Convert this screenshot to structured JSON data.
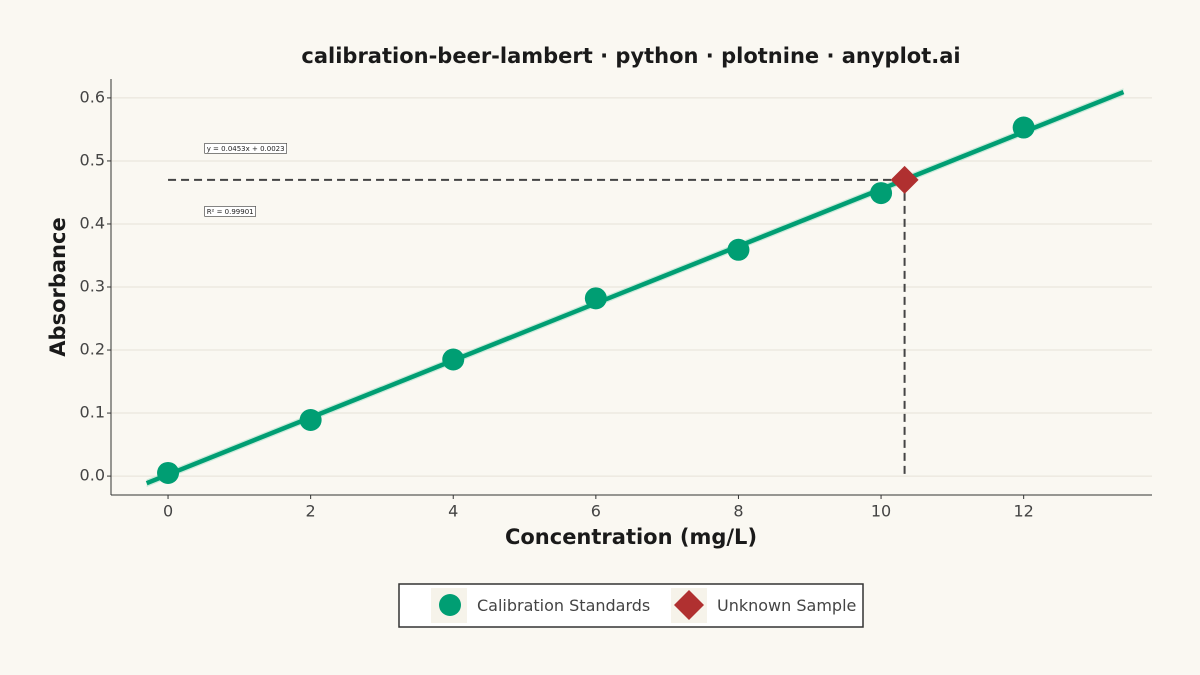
{
  "chart_data": {
    "type": "scatter",
    "title": "calibration-beer-lambert · python · plotnine · anyplot.ai",
    "xlabel": "Concentration (mg/L)",
    "ylabel": "Absorbance",
    "xlim": [
      -0.8,
      13.8
    ],
    "ylim": [
      -0.03,
      0.63
    ],
    "x_ticks": [
      0,
      2,
      4,
      6,
      8,
      10,
      12
    ],
    "y_ticks": [
      0.0,
      0.1,
      0.2,
      0.3,
      0.4,
      0.5,
      0.6
    ],
    "x_tick_labels": [
      "0",
      "2",
      "4",
      "6",
      "8",
      "10",
      "12"
    ],
    "y_tick_labels": [
      "0.0",
      "0.1",
      "0.2",
      "0.3",
      "0.4",
      "0.5",
      "0.6"
    ],
    "grid": true,
    "series": [
      {
        "name": "Calibration Standards",
        "marker": "circle",
        "color": "#009E73",
        "x": [
          0,
          2,
          4,
          6,
          8,
          10,
          12
        ],
        "y": [
          0.005,
          0.089,
          0.185,
          0.282,
          0.359,
          0.449,
          0.553
        ]
      },
      {
        "name": "Unknown Sample",
        "marker": "diamond",
        "color": "#B03030",
        "x": [
          10.33
        ],
        "y": [
          0.47
        ]
      }
    ],
    "fit": {
      "slope": 0.0453,
      "intercept": 0.0023,
      "x_range": [
        -0.3,
        13.4
      ],
      "band_halfwidth": 0.006,
      "color": "#009E73",
      "band_color": "#BFE7D5"
    },
    "annotations": {
      "equation": "y = 0.0453x + 0.0023",
      "r_squared": "R² = 0.99901"
    },
    "equation_anchor": {
      "x": 0.5,
      "y": 0.52
    },
    "r2_anchor": {
      "x": 0.5,
      "y": 0.42
    },
    "legend_position": "bottom",
    "guide_color": "#444444"
  }
}
